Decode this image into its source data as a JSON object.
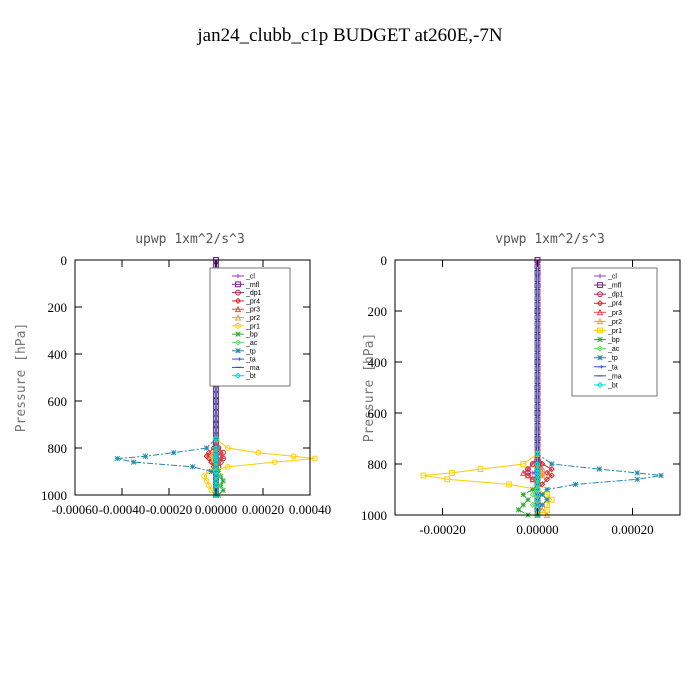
{
  "figure_title": "jan24_clubb_c1p  BUDGET at260E,-7N",
  "chart_data": [
    {
      "type": "line",
      "title": "upwp   1xm^2/s^3",
      "ylabel": "Pressure [hPa]",
      "xlabel": "",
      "xlim": [
        -0.0006,
        0.0004
      ],
      "ylim": [
        1000,
        0
      ],
      "xticks": [
        "-0.00060",
        "-0.00040",
        "-0.00020",
        "0.00000",
        "0.00020",
        "0.00040"
      ],
      "xtick_values": [
        -0.0006,
        -0.0004,
        -0.0002,
        0.0,
        0.0002,
        0.0004
      ],
      "yticks": [
        "0",
        "200",
        "400",
        "600",
        "800",
        "1000"
      ],
      "ytick_values": [
        0,
        200,
        400,
        600,
        800,
        1000
      ],
      "legend_position": "top-right",
      "grid": false,
      "y": [
        0,
        50,
        100,
        200,
        300,
        400,
        500,
        600,
        700,
        760,
        800,
        820,
        835,
        845,
        860,
        880,
        900,
        920,
        940,
        960,
        980,
        1000
      ],
      "series": [
        {
          "name": "_cl",
          "color": "#9933cc",
          "marker": "cross",
          "values": [
            0,
            0,
            0,
            0,
            0,
            0,
            0,
            0,
            0,
            0,
            5e-06,
            1e-05,
            -1e-05,
            1e-05,
            0,
            0,
            0,
            0,
            0,
            0,
            0,
            0
          ]
        },
        {
          "name": "_mfl",
          "color": "#7a1f8f",
          "marker": "square",
          "values": [
            0,
            0,
            0,
            0,
            0,
            0,
            0,
            0,
            0,
            0,
            0,
            0,
            0,
            0,
            0,
            0,
            0,
            0,
            0,
            0,
            0,
            0
          ]
        },
        {
          "name": "_dp1",
          "color": "#aa2255",
          "marker": "circle",
          "values": [
            0,
            0,
            0,
            0,
            0,
            0,
            0,
            0,
            0,
            0,
            1e-05,
            3e-05,
            2e-05,
            3e-05,
            2e-05,
            1e-05,
            0,
            0,
            0,
            0,
            0,
            0
          ]
        },
        {
          "name": "_pr4",
          "color": "#dd2222",
          "marker": "diamond",
          "values": [
            0,
            0,
            0,
            0,
            0,
            0,
            0,
            0,
            0,
            0,
            -1e-05,
            -3e-05,
            -4e-05,
            -3e-05,
            -2e-05,
            -1e-05,
            0,
            0,
            0,
            0,
            0,
            0
          ]
        },
        {
          "name": "_pr3",
          "color": "#ee4444",
          "marker": "triangle",
          "values": [
            0,
            0,
            0,
            0,
            0,
            0,
            0,
            0,
            0,
            0,
            1e-05,
            2e-05,
            3e-05,
            2e-05,
            1e-05,
            0,
            0,
            0,
            0,
            0,
            0,
            0
          ]
        },
        {
          "name": "_pr2",
          "color": "#ff9933",
          "marker": "triangle",
          "values": [
            0,
            0,
            0,
            0,
            0,
            0,
            0,
            0,
            0,
            0,
            0,
            -1e-05,
            -2e-05,
            -1e-05,
            0,
            0,
            0,
            0,
            0,
            0,
            0,
            0
          ]
        },
        {
          "name": "_pr1",
          "color": "#ffcc00",
          "marker": "circle",
          "values": [
            0,
            0,
            0,
            0,
            0,
            0,
            0,
            0,
            0,
            0,
            5e-05,
            0.00018,
            0.00033,
            0.00042,
            0.00025,
            5e-05,
            -3e-05,
            -5e-05,
            -4e-05,
            -3e-05,
            -2e-05,
            0
          ]
        },
        {
          "name": "_bp",
          "color": "#33aa33",
          "marker": "star",
          "values": [
            0,
            0,
            0,
            0,
            0,
            0,
            0,
            0,
            0,
            0,
            0,
            0,
            0,
            0,
            0,
            0,
            1e-05,
            2e-05,
            3e-05,
            2e-05,
            3e-05,
            1e-05
          ]
        },
        {
          "name": "_ac",
          "color": "#66dd66",
          "marker": "diamond",
          "values": [
            0,
            0,
            0,
            0,
            0,
            0,
            0,
            0,
            0,
            0,
            0,
            0,
            0,
            0,
            0,
            0,
            0,
            1e-05,
            0,
            1e-05,
            0,
            0
          ]
        },
        {
          "name": "_tp",
          "color": "#2288aa",
          "marker": "star",
          "values": [
            0,
            0,
            0,
            0,
            0,
            0,
            0,
            0,
            0,
            0,
            -4e-05,
            -0.00018,
            -0.0003,
            -0.00042,
            -0.00035,
            -0.0001,
            -2e-05,
            0,
            0,
            0,
            0,
            0
          ]
        },
        {
          "name": "_ta",
          "color": "#3355cc",
          "marker": "arrow",
          "values": [
            0,
            0,
            0,
            0,
            0,
            0,
            0,
            0,
            0,
            0,
            0,
            0,
            0,
            0,
            0,
            0,
            0,
            0,
            0,
            0,
            0,
            0
          ]
        },
        {
          "name": "_ma",
          "color": "#2255aa",
          "marker": "dash",
          "values": [
            0,
            0,
            0,
            0,
            0,
            0,
            0,
            0,
            0,
            0,
            0,
            0,
            0,
            0,
            0,
            0,
            0,
            0,
            0,
            0,
            0,
            0
          ]
        },
        {
          "name": "_bt",
          "color": "#00dddd",
          "marker": "diamond",
          "values": [
            0,
            0,
            0,
            0,
            0,
            0,
            0,
            0,
            0,
            0,
            0,
            0,
            0,
            0,
            0,
            0,
            0,
            0,
            0,
            0,
            0,
            0
          ]
        }
      ]
    },
    {
      "type": "line",
      "title": "vpwp   1xm^2/s^3",
      "ylabel": "Pressure [hPa]",
      "xlabel": "",
      "xlim": [
        -0.0003,
        0.0003
      ],
      "ylim": [
        1000,
        0
      ],
      "xticks": [
        "-0.00020",
        "0.00000",
        "0.00020"
      ],
      "xtick_values": [
        -0.0002,
        0.0,
        0.0002
      ],
      "yticks": [
        "0",
        "200",
        "400",
        "600",
        "800",
        "1000"
      ],
      "ytick_values": [
        0,
        200,
        400,
        600,
        800,
        1000
      ],
      "legend_position": "top-right",
      "grid": false,
      "y": [
        0,
        50,
        100,
        200,
        300,
        400,
        500,
        600,
        700,
        760,
        800,
        820,
        835,
        845,
        860,
        880,
        900,
        920,
        940,
        960,
        980,
        1000
      ],
      "series": [
        {
          "name": "_cl",
          "color": "#9933cc",
          "marker": "cross",
          "values": [
            0,
            0,
            0,
            0,
            0,
            0,
            0,
            0,
            0,
            0,
            5e-06,
            1e-05,
            -1e-05,
            1e-05,
            0,
            0,
            0,
            0,
            0,
            0,
            0,
            0
          ]
        },
        {
          "name": "_mfl",
          "color": "#7a1f8f",
          "marker": "square",
          "values": [
            0,
            0,
            0,
            0,
            0,
            0,
            0,
            0,
            0,
            0,
            0,
            0,
            0,
            0,
            0,
            0,
            0,
            0,
            0,
            0,
            0,
            0
          ]
        },
        {
          "name": "_dp1",
          "color": "#aa2255",
          "marker": "circle",
          "values": [
            0,
            0,
            0,
            0,
            0,
            0,
            0,
            0,
            0,
            0,
            -1e-05,
            -2e-05,
            -2e-05,
            -2e-05,
            -1e-05,
            0,
            0,
            0,
            0,
            0,
            0,
            0
          ]
        },
        {
          "name": "_pr4",
          "color": "#dd2222",
          "marker": "diamond",
          "values": [
            0,
            0,
            0,
            0,
            0,
            0,
            0,
            0,
            0,
            0,
            1e-05,
            3e-05,
            2e-05,
            3e-05,
            2e-05,
            1e-05,
            0,
            0,
            0,
            0,
            0,
            0
          ]
        },
        {
          "name": "_pr3",
          "color": "#ee4444",
          "marker": "triangle",
          "values": [
            0,
            0,
            0,
            0,
            0,
            0,
            0,
            0,
            0,
            0,
            -1e-05,
            -2e-05,
            -3e-05,
            -2e-05,
            -1e-05,
            0,
            0,
            0,
            0,
            0,
            0,
            0
          ]
        },
        {
          "name": "_pr2",
          "color": "#ff9933",
          "marker": "triangle",
          "values": [
            0,
            0,
            0,
            0,
            0,
            0,
            0,
            0,
            0,
            0,
            0,
            1e-05,
            1e-05,
            1e-05,
            0,
            0,
            0,
            0,
            0,
            0,
            1e-05,
            2e-05
          ]
        },
        {
          "name": "_pr1",
          "color": "#ffcc00",
          "marker": "square",
          "values": [
            0,
            0,
            0,
            0,
            0,
            0,
            0,
            0,
            0,
            0,
            -3e-05,
            -0.00012,
            -0.00018,
            -0.00024,
            -0.00019,
            -6e-05,
            0,
            2e-05,
            3e-05,
            2e-05,
            2e-05,
            0
          ]
        },
        {
          "name": "_bp",
          "color": "#33aa33",
          "marker": "star",
          "values": [
            0,
            0,
            0,
            0,
            0,
            0,
            0,
            0,
            0,
            0,
            0,
            0,
            0,
            0,
            0,
            0,
            -1e-05,
            -3e-05,
            -2e-05,
            -3e-05,
            -4e-05,
            -2e-05
          ]
        },
        {
          "name": "_ac",
          "color": "#66dd66",
          "marker": "diamond",
          "values": [
            0,
            0,
            0,
            0,
            0,
            0,
            0,
            0,
            0,
            0,
            0,
            0,
            0,
            0,
            0,
            0,
            0,
            -1e-05,
            0,
            -1e-05,
            0,
            0
          ]
        },
        {
          "name": "_tp",
          "color": "#2288aa",
          "marker": "star",
          "values": [
            0,
            0,
            0,
            0,
            0,
            0,
            0,
            0,
            0,
            0,
            3e-05,
            0.00013,
            0.00021,
            0.00026,
            0.00021,
            8e-05,
            2e-05,
            1e-05,
            2e-05,
            1e-05,
            0,
            0
          ]
        },
        {
          "name": "_ta",
          "color": "#3355cc",
          "marker": "arrow",
          "values": [
            0,
            0,
            0,
            0,
            0,
            0,
            0,
            0,
            0,
            0,
            0,
            0,
            0,
            0,
            0,
            0,
            0,
            0,
            0,
            0,
            0,
            0
          ]
        },
        {
          "name": "_ma",
          "color": "#2255aa",
          "marker": "dash",
          "values": [
            0,
            0,
            0,
            0,
            0,
            0,
            0,
            0,
            0,
            0,
            0,
            0,
            0,
            0,
            0,
            0,
            0,
            0,
            0,
            0,
            0,
            0
          ]
        },
        {
          "name": "_bt",
          "color": "#00dddd",
          "marker": "diamond",
          "values": [
            0,
            0,
            0,
            0,
            0,
            0,
            0,
            0,
            0,
            0,
            0,
            0,
            0,
            0,
            0,
            0,
            0,
            0,
            0,
            0,
            0,
            0
          ]
        }
      ]
    }
  ]
}
